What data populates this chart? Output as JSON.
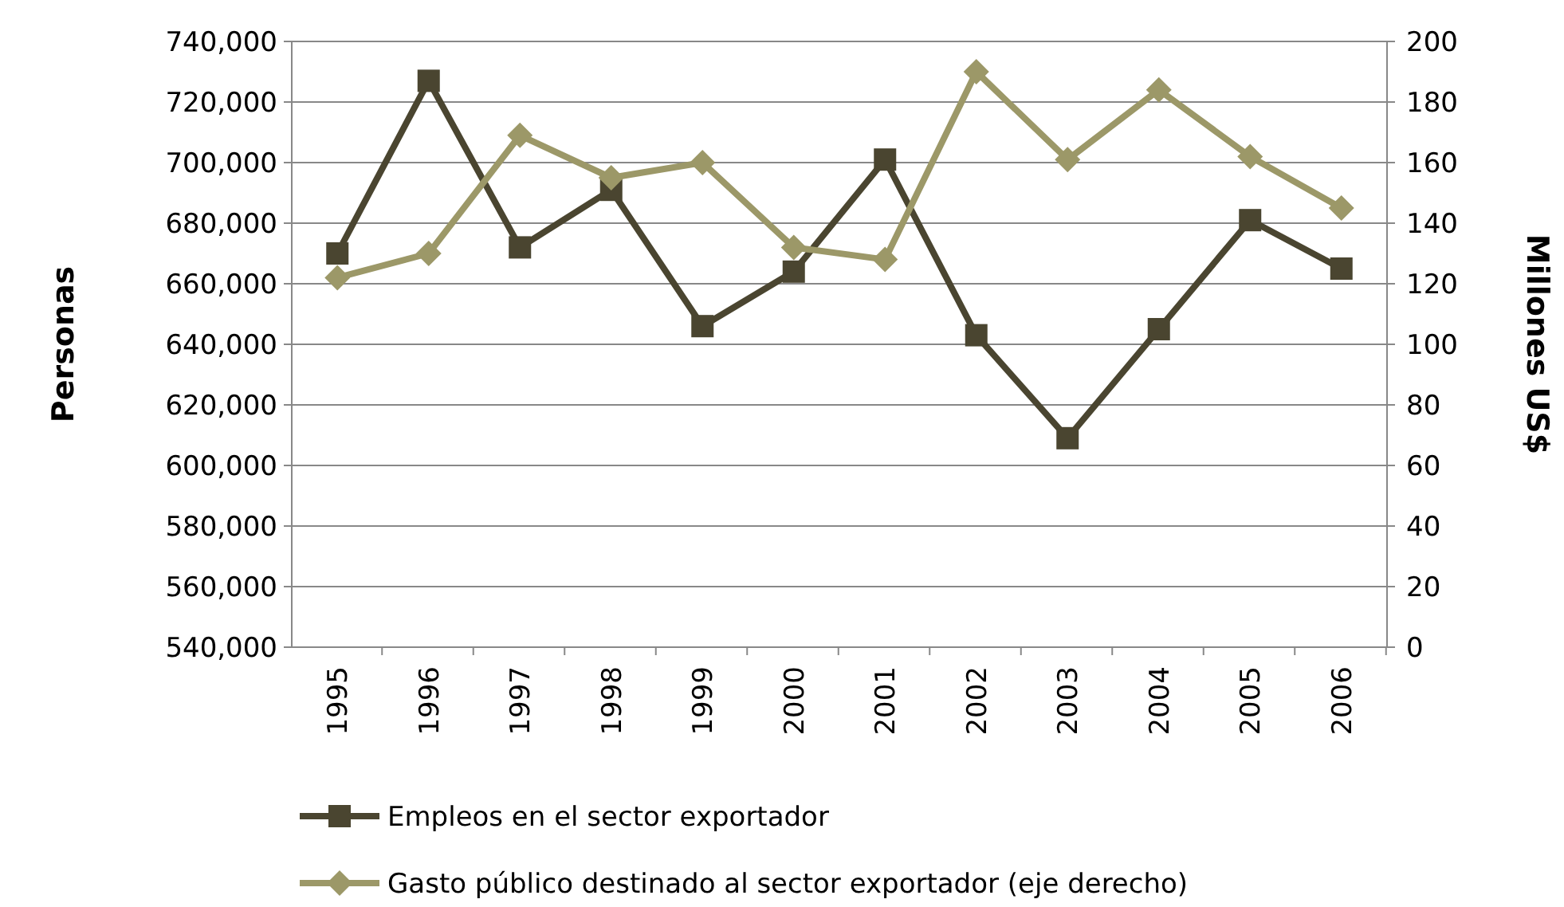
{
  "chart_data": {
    "type": "line",
    "ylabel": "Personas",
    "y2label": "Millones US$",
    "categories": [
      "1995",
      "1996",
      "1997",
      "1998",
      "1999",
      "2000",
      "2001",
      "2002",
      "2003",
      "2004",
      "2005",
      "2006"
    ],
    "series": [
      {
        "name": "Empleos en el sector exportador",
        "color": "#4a4530",
        "marker": "square",
        "values": [
          670000,
          727000,
          672000,
          691000,
          646000,
          664000,
          701000,
          643000,
          609000,
          645000,
          681000,
          665000
        ]
      },
      {
        "name": "Gasto público destinado al sector exportador (eje derecho)",
        "color": "#9c9868",
        "marker": "diamond",
        "axis": "y2",
        "values": [
          122,
          130,
          169,
          155,
          160,
          132,
          128,
          190,
          161,
          184,
          162,
          145
        ]
      }
    ],
    "ylim": [
      540000,
      740000
    ],
    "yticks": [
      {
        "value": 540000,
        "label": "540,000"
      },
      {
        "value": 560000,
        "label": "560,000"
      },
      {
        "value": 580000,
        "label": "580,000"
      },
      {
        "value": 600000,
        "label": "600,000"
      },
      {
        "value": 620000,
        "label": "620,000"
      },
      {
        "value": 640000,
        "label": "640,000"
      },
      {
        "value": 660000,
        "label": "660,000"
      },
      {
        "value": 680000,
        "label": "680,000"
      },
      {
        "value": 700000,
        "label": "700,000"
      },
      {
        "value": 720000,
        "label": "720,000"
      },
      {
        "value": 740000,
        "label": "740,000"
      }
    ],
    "y2lim": [
      0,
      200
    ],
    "y2ticks": [
      0,
      20,
      40,
      60,
      80,
      100,
      120,
      140,
      160,
      180,
      200
    ],
    "grid": "y",
    "legend": "bottom",
    "line_style": "solid"
  }
}
